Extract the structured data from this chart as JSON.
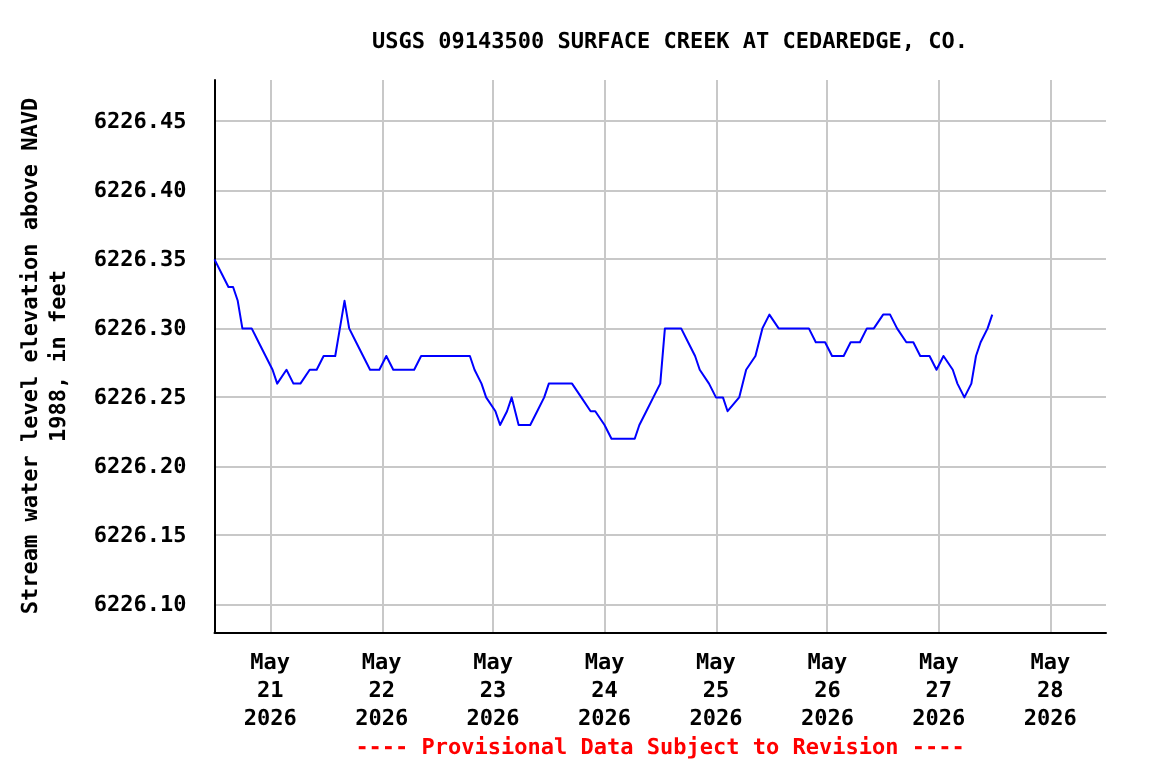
{
  "chart_data": {
    "type": "line",
    "title": "USGS 09143500 SURFACE CREEK AT CEDAREDGE, CO.",
    "ylabel": "Stream water level elevation above NAVD\n1988, in feet",
    "annotations": [
      "---- Provisional Data Subject to Revision ----"
    ],
    "x": [
      "2026-05-20T12:00",
      "2026-05-20T13:30",
      "2026-05-20T15:00",
      "2026-05-20T16:00",
      "2026-05-20T17:00",
      "2026-05-20T18:00",
      "2026-05-20T20:00",
      "2026-05-20T21:30",
      "2026-05-20T23:00",
      "2026-05-21T00:30",
      "2026-05-21T01:30",
      "2026-05-21T03:30",
      "2026-05-21T05:00",
      "2026-05-21T06:30",
      "2026-05-21T08:30",
      "2026-05-21T10:00",
      "2026-05-21T11:30",
      "2026-05-21T12:30",
      "2026-05-21T14:00",
      "2026-05-21T15:00",
      "2026-05-21T16:00",
      "2026-05-21T17:00",
      "2026-05-21T18:30",
      "2026-05-21T20:00",
      "2026-05-21T21:30",
      "2026-05-21T23:30",
      "2026-05-22T01:00",
      "2026-05-22T02:30",
      "2026-05-22T04:30",
      "2026-05-22T07:00",
      "2026-05-22T08:30",
      "2026-05-22T10:30",
      "2026-05-22T12:30",
      "2026-05-22T15:00",
      "2026-05-22T17:00",
      "2026-05-22T19:00",
      "2026-05-22T20:00",
      "2026-05-22T21:30",
      "2026-05-22T22:30",
      "2026-05-23T00:30",
      "2026-05-23T01:30",
      "2026-05-23T03:00",
      "2026-05-23T04:00",
      "2026-05-23T05:30",
      "2026-05-23T06:30",
      "2026-05-23T08:00",
      "2026-05-23T09:30",
      "2026-05-23T11:00",
      "2026-05-23T12:00",
      "2026-05-23T14:30",
      "2026-05-23T17:00",
      "2026-05-23T19:00",
      "2026-05-23T21:00",
      "2026-05-23T22:00",
      "2026-05-24T00:00",
      "2026-05-24T01:30",
      "2026-05-24T04:30",
      "2026-05-24T06:30",
      "2026-05-24T07:30",
      "2026-05-24T09:00",
      "2026-05-24T10:30",
      "2026-05-24T12:00",
      "2026-05-24T13:00",
      "2026-05-24T15:00",
      "2026-05-24T16:30",
      "2026-05-24T18:00",
      "2026-05-24T19:30",
      "2026-05-24T20:30",
      "2026-05-24T22:30",
      "2026-05-25T00:00",
      "2026-05-25T01:30",
      "2026-05-25T02:30",
      "2026-05-25T05:00",
      "2026-05-25T06:30",
      "2026-05-25T08:30",
      "2026-05-25T10:00",
      "2026-05-25T11:30",
      "2026-05-25T13:30",
      "2026-05-25T15:00",
      "2026-05-25T16:30",
      "2026-05-25T18:30",
      "2026-05-25T20:00",
      "2026-05-25T21:30",
      "2026-05-25T23:30",
      "2026-05-26T01:00",
      "2026-05-26T03:30",
      "2026-05-26T05:00",
      "2026-05-26T07:00",
      "2026-05-26T08:30",
      "2026-05-26T10:00",
      "2026-05-26T12:00",
      "2026-05-26T13:30",
      "2026-05-26T15:00",
      "2026-05-26T17:00",
      "2026-05-26T18:30",
      "2026-05-26T20:00",
      "2026-05-26T22:00",
      "2026-05-26T23:30",
      "2026-05-27T01:00",
      "2026-05-27T03:00",
      "2026-05-27T04:00",
      "2026-05-27T05:30",
      "2026-05-27T07:00",
      "2026-05-27T08:00",
      "2026-05-27T09:00",
      "2026-05-27T10:30",
      "2026-05-27T11:30"
    ],
    "series": [
      {
        "color": "#0000ff",
        "values": [
          6226.35,
          6226.34,
          6226.33,
          6226.33,
          6226.32,
          6226.3,
          6226.3,
          6226.29,
          6226.28,
          6226.27,
          6226.26,
          6226.27,
          6226.26,
          6226.26,
          6226.27,
          6226.27,
          6226.28,
          6226.28,
          6226.28,
          6226.3,
          6226.32,
          6226.3,
          6226.29,
          6226.28,
          6226.27,
          6226.27,
          6226.28,
          6226.27,
          6226.27,
          6226.27,
          6226.28,
          6226.28,
          6226.28,
          6226.28,
          6226.28,
          6226.28,
          6226.27,
          6226.26,
          6226.25,
          6226.24,
          6226.23,
          6226.24,
          6226.25,
          6226.23,
          6226.23,
          6226.23,
          6226.24,
          6226.25,
          6226.26,
          6226.26,
          6226.26,
          6226.25,
          6226.24,
          6226.24,
          6226.23,
          6226.22,
          6226.22,
          6226.22,
          6226.23,
          6226.24,
          6226.25,
          6226.26,
          6226.3,
          6226.3,
          6226.3,
          6226.29,
          6226.28,
          6226.27,
          6226.26,
          6226.25,
          6226.25,
          6226.24,
          6226.25,
          6226.27,
          6226.28,
          6226.3,
          6226.31,
          6226.3,
          6226.3,
          6226.3,
          6226.3,
          6226.3,
          6226.29,
          6226.29,
          6226.28,
          6226.28,
          6226.29,
          6226.29,
          6226.3,
          6226.3,
          6226.31,
          6226.31,
          6226.3,
          6226.29,
          6226.29,
          6226.28,
          6226.28,
          6226.27,
          6226.28,
          6226.27,
          6226.26,
          6226.25,
          6226.26,
          6226.28,
          6226.29,
          6226.3,
          6226.31
        ]
      }
    ],
    "xlim": [
      "2026-05-20T12:00",
      "2026-05-28T12:00"
    ],
    "xticks": [
      {
        "value": "2026-05-21",
        "label": "May\n21\n2026"
      },
      {
        "value": "2026-05-22",
        "label": "May\n22\n2026"
      },
      {
        "value": "2026-05-23",
        "label": "May\n23\n2026"
      },
      {
        "value": "2026-05-24",
        "label": "May\n24\n2026"
      },
      {
        "value": "2026-05-25",
        "label": "May\n25\n2026"
      },
      {
        "value": "2026-05-26",
        "label": "May\n26\n2026"
      },
      {
        "value": "2026-05-27",
        "label": "May\n27\n2026"
      },
      {
        "value": "2026-05-28",
        "label": "May\n28\n2026"
      }
    ],
    "ylim": [
      6226.08,
      6226.48
    ],
    "yticks": [
      {
        "value": 6226.1,
        "label": "6226.10"
      },
      {
        "value": 6226.15,
        "label": "6226.15"
      },
      {
        "value": 6226.2,
        "label": "6226.20"
      },
      {
        "value": 6226.25,
        "label": "6226.25"
      },
      {
        "value": 6226.3,
        "label": "6226.30"
      },
      {
        "value": 6226.35,
        "label": "6226.35"
      },
      {
        "value": 6226.4,
        "label": "6226.40"
      },
      {
        "value": 6226.45,
        "label": "6226.45"
      }
    ],
    "grid": true,
    "marker": "none",
    "line_style": "solid"
  }
}
